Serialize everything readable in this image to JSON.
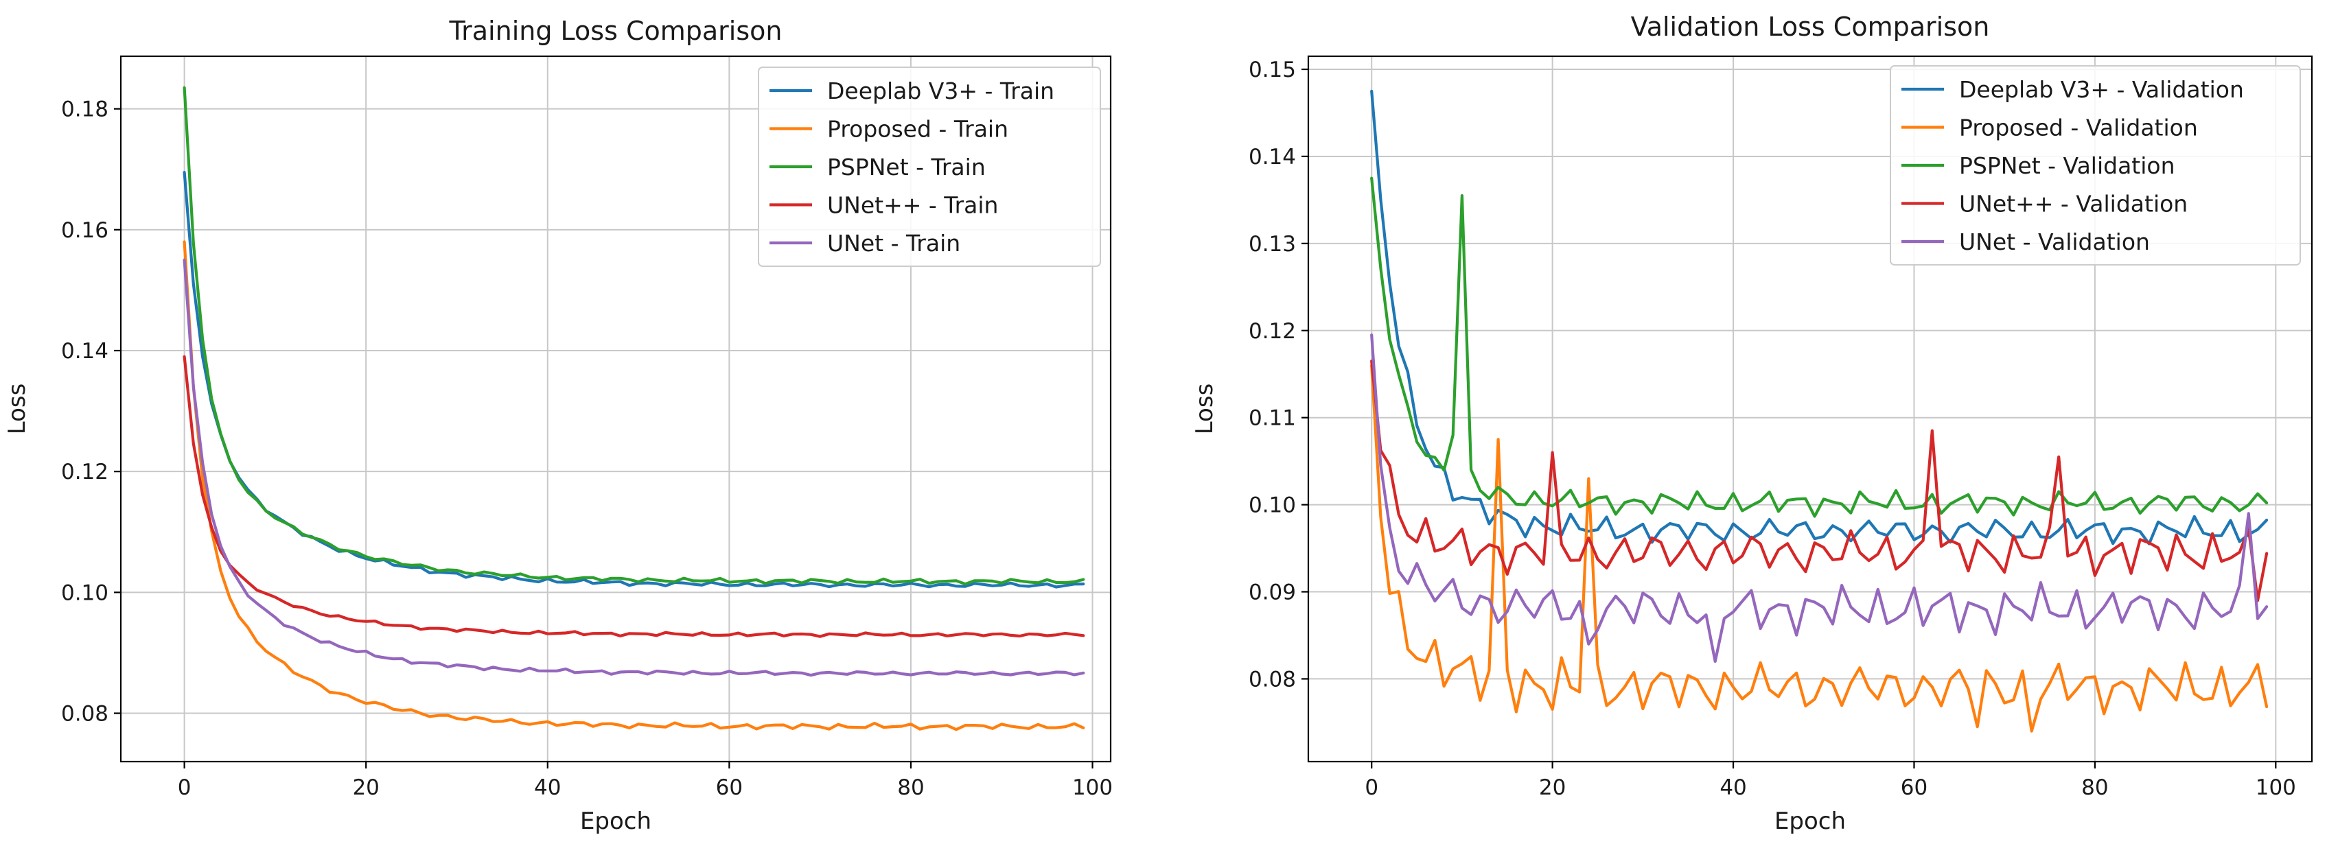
{
  "colors": {
    "deeplab": "#1f77b4",
    "proposed": "#ff7f0e",
    "pspnet": "#2ca02c",
    "unetpp": "#d62728",
    "unet": "#9467bd"
  },
  "chart_data": [
    {
      "type": "line",
      "title": "Training Loss Comparison",
      "xlabel": "Epoch",
      "ylabel": "Loss",
      "xlim": [
        -7,
        102
      ],
      "ylim": [
        0.072,
        0.1887
      ],
      "xticks": [
        0,
        20,
        40,
        60,
        80,
        100
      ],
      "yticks": [
        0.08,
        0.1,
        0.12,
        0.14,
        0.16,
        0.18
      ],
      "ytick_labels": [
        "0.08",
        "0.10",
        "0.12",
        "0.14",
        "0.16",
        "0.18"
      ],
      "xtick_labels": [
        "0",
        "20",
        "40",
        "60",
        "80",
        "100"
      ],
      "grid": true,
      "legend_position": "top-right",
      "series": [
        {
          "name": "Deeplab V3+ - Train",
          "color_key": "deeplab",
          "start": 0.1695,
          "floor": 0.1012,
          "k1": 0.041,
          "r1": 0.5,
          "k2": 0.0273,
          "r2": 0.09,
          "noise": 0.00045,
          "phase": 1.3,
          "spikes": []
        },
        {
          "name": "Proposed - Train",
          "color_key": "proposed",
          "start": 0.158,
          "floor": 0.0778,
          "k1": 0.05,
          "r1": 0.55,
          "k2": 0.0302,
          "r2": 0.1,
          "noise": 0.00055,
          "phase": 2.1,
          "spikes": []
        },
        {
          "name": "PSPNet - Train",
          "color_key": "pspnet",
          "start": 0.1835,
          "floor": 0.1018,
          "k1": 0.056,
          "r1": 0.55,
          "k2": 0.0257,
          "r2": 0.09,
          "noise": 0.00045,
          "phase": 0.4,
          "spikes": []
        },
        {
          "name": "UNet++ - Train",
          "color_key": "unetpp",
          "start": 0.139,
          "floor": 0.093,
          "k1": 0.03,
          "r1": 0.55,
          "k2": 0.016,
          "r2": 0.1,
          "noise": 0.00035,
          "phase": 3.3,
          "spikes": []
        },
        {
          "name": "UNet - Train",
          "color_key": "unet",
          "start": 0.155,
          "floor": 0.0866,
          "k1": 0.044,
          "r1": 0.55,
          "k2": 0.0244,
          "r2": 0.1,
          "noise": 0.0004,
          "phase": 4.7,
          "spikes": []
        }
      ]
    },
    {
      "type": "line",
      "title": "Validation Loss Comparison",
      "xlabel": "Epoch",
      "ylabel": "Loss",
      "xlim": [
        -7,
        104
      ],
      "ylim": [
        0.0705,
        0.1515
      ],
      "xticks": [
        0,
        20,
        40,
        60,
        80,
        100
      ],
      "yticks": [
        0.08,
        0.09,
        0.1,
        0.11,
        0.12,
        0.13,
        0.14,
        0.15
      ],
      "ytick_labels": [
        "0.08",
        "0.09",
        "0.10",
        "0.11",
        "0.12",
        "0.13",
        "0.14",
        "0.15"
      ],
      "xtick_labels": [
        "0",
        "20",
        "40",
        "60",
        "80",
        "100"
      ],
      "grid": true,
      "legend_position": "top-right",
      "series": [
        {
          "name": "Deeplab V3+ - Validation",
          "color_key": "deeplab",
          "start": 0.1475,
          "floor": 0.097,
          "k1": 0.033,
          "r1": 0.35,
          "k2": 0.0175,
          "r2": 0.18,
          "noise": 0.0018,
          "phase": 0.9,
          "spikes": []
        },
        {
          "name": "Proposed - Validation",
          "color_key": "proposed",
          "start": 0.116,
          "floor": 0.079,
          "k1": 0.025,
          "r1": 0.9,
          "k2": 0.012,
          "r2": 0.2,
          "noise": 0.0035,
          "phase": 2.6,
          "spikes": [
            [
              14,
              0.1075
            ],
            [
              24,
              0.103
            ],
            [
              15,
              0.081
            ],
            [
              20,
              0.0765
            ],
            [
              73,
              0.074
            ],
            [
              67,
              0.0745
            ]
          ]
        },
        {
          "name": "PSPNet - Validation",
          "color_key": "pspnet",
          "start": 0.1375,
          "floor": 0.1002,
          "k1": 0.023,
          "r1": 0.45,
          "k2": 0.015,
          "r2": 0.2,
          "noise": 0.0016,
          "phase": 1.7,
          "spikes": [
            [
              10,
              0.1355
            ],
            [
              9,
              0.108
            ],
            [
              11,
              0.104
            ]
          ]
        },
        {
          "name": "UNet++ - Validation",
          "color_key": "unetpp",
          "start": 0.1165,
          "floor": 0.0945,
          "k1": 0.018,
          "r1": 0.7,
          "k2": 0.006,
          "r2": 0.25,
          "noise": 0.003,
          "phase": 3.9,
          "spikes": [
            [
              62,
              0.1085
            ],
            [
              76,
              0.1055
            ],
            [
              20,
              0.106
            ],
            [
              98,
              0.089
            ]
          ]
        },
        {
          "name": "UNet - Validation",
          "color_key": "unet",
          "start": 0.1195,
          "floor": 0.088,
          "k1": 0.022,
          "r1": 0.9,
          "k2": 0.008,
          "r2": 0.2,
          "noise": 0.0032,
          "phase": 5.2,
          "spikes": [
            [
              24,
              0.084
            ],
            [
              38,
              0.082
            ],
            [
              83,
              0.0865
            ],
            [
              97,
              0.099
            ]
          ]
        }
      ]
    }
  ]
}
